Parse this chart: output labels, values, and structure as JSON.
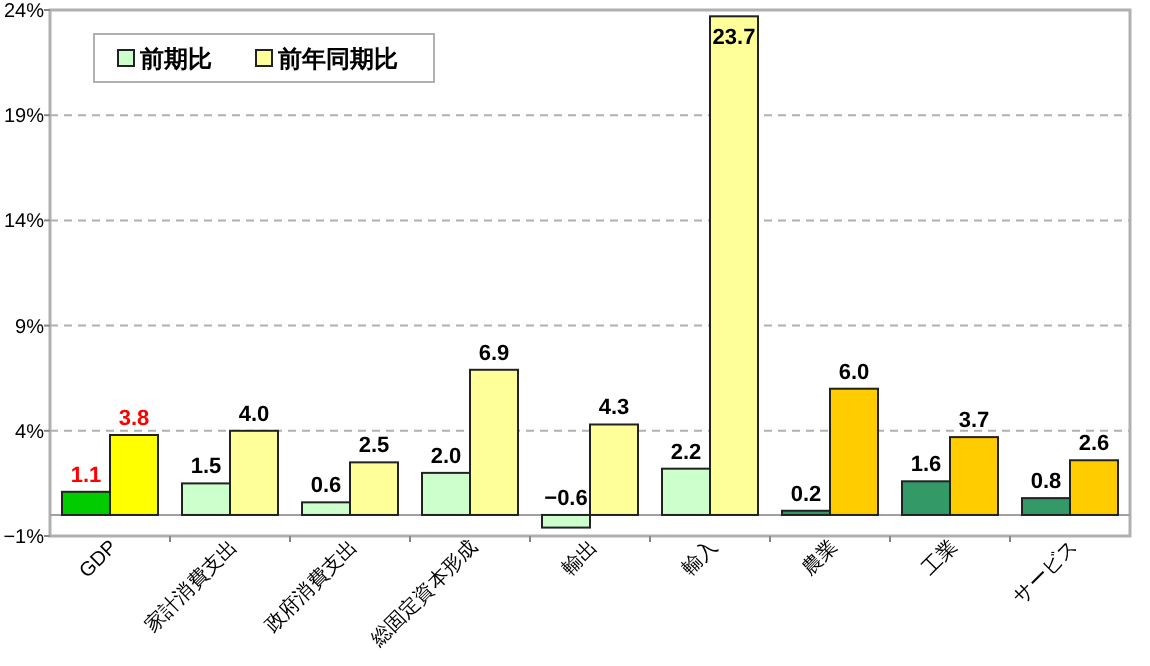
{
  "chart_data": {
    "type": "bar",
    "categories": [
      "GDP",
      "家計消費支出",
      "政府消費支出",
      "総固定資本形成",
      "輸出",
      "輸入",
      "農業",
      "工業",
      "サービス"
    ],
    "series": [
      {
        "name": "前期比",
        "color": "#ccffcc",
        "colors": [
          "#00cc00",
          "#ccffcc",
          "#ccffcc",
          "#ccffcc",
          "#ccffcc",
          "#ccffcc",
          "#339966",
          "#339966",
          "#339966"
        ],
        "values": [
          1.1,
          1.5,
          0.6,
          2.0,
          -0.6,
          2.2,
          0.2,
          1.6,
          0.8
        ],
        "value_labels": [
          "1.1",
          "1.5",
          "0.6",
          "2.0",
          "−0.6",
          "2.2",
          "0.2",
          "1.6",
          "0.8"
        ]
      },
      {
        "name": "前年同期比",
        "color": "#ffff99",
        "colors": [
          "#ffff00",
          "#ffff99",
          "#ffff99",
          "#ffff99",
          "#ffff99",
          "#ffff99",
          "#ffcc00",
          "#ffcc00",
          "#ffcc00"
        ],
        "values": [
          3.8,
          4.0,
          2.5,
          6.9,
          4.3,
          23.7,
          6.0,
          3.7,
          2.6
        ],
        "value_labels": [
          "3.8",
          "4.0",
          "2.5",
          "6.9",
          "4.3",
          "23.7",
          "6.0",
          "3.7",
          "2.6"
        ]
      }
    ],
    "ylim": [
      -1,
      24
    ],
    "yticks": [
      {
        "value": -1,
        "label": "−1%"
      },
      {
        "value": 4,
        "label": "4%"
      },
      {
        "value": 9,
        "label": "9%"
      },
      {
        "value": 14,
        "label": "14%"
      },
      {
        "value": 19,
        "label": "19%"
      },
      {
        "value": 24,
        "label": "24%"
      }
    ],
    "grid": "y",
    "legend": "top left"
  }
}
